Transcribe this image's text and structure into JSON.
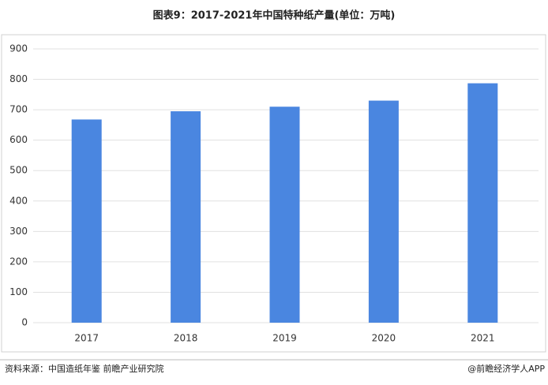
{
  "chart_data": {
    "type": "bar",
    "title": "图表9：2017-2021年中国特种纸产量(单位：万吨)",
    "categories": [
      "2017",
      "2018",
      "2019",
      "2020",
      "2021"
    ],
    "values": [
      668,
      695,
      710,
      730,
      787
    ],
    "color": "#4a86e0",
    "ylim": [
      0,
      900
    ],
    "yticks": [
      0,
      100,
      200,
      300,
      400,
      500,
      600,
      700,
      800,
      900
    ],
    "grid": true,
    "source": "资料来源：中国造纸年鉴 前瞻产业研究院",
    "credit": "@前瞻经济学人APP"
  }
}
